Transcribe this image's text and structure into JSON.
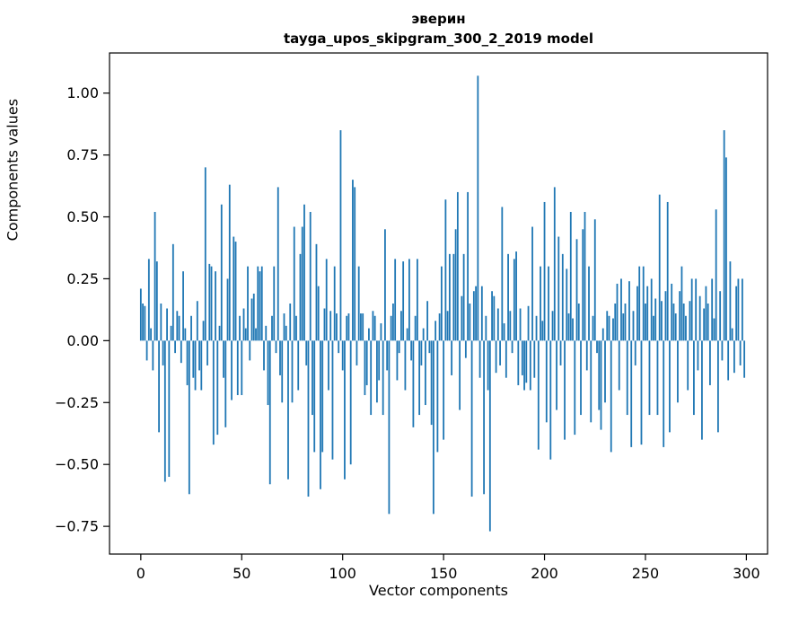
{
  "figure": {
    "title_line1": "эверин",
    "title_line2": "tayga_upos_skipgram_300_2_2019 model",
    "xlabel": "Vector components",
    "ylabel": "Components values"
  },
  "chart_data": {
    "type": "bar",
    "title": "эверин — tayga_upos_skipgram_300_2_2019 model",
    "xlabel": "Vector components",
    "ylabel": "Components values",
    "legend": "none",
    "grid": false,
    "bar_color": "#1f77b4",
    "frame_color": "#000000",
    "xlim": [
      -15.5,
      310.5
    ],
    "ylim": [
      -0.862,
      1.162
    ],
    "x_ticks": [
      0,
      50,
      100,
      150,
      200,
      250,
      300
    ],
    "x_tick_labels": [
      "0",
      "50",
      "100",
      "150",
      "200",
      "250",
      "300"
    ],
    "y_ticks": [
      -0.75,
      -0.5,
      -0.25,
      0,
      0.25,
      0.5,
      0.75,
      1.0
    ],
    "y_tick_labels": [
      "−0.75",
      "−0.50",
      "−0.25",
      "0.00",
      "0.25",
      "0.50",
      "0.75",
      "1.00"
    ],
    "x_start": 0,
    "bar_width_units": 0.8,
    "values": [
      0.21,
      0.15,
      0.14,
      -0.08,
      0.33,
      0.05,
      -0.12,
      0.52,
      0.32,
      -0.37,
      0.15,
      -0.1,
      -0.57,
      0.13,
      -0.55,
      0.06,
      0.39,
      -0.05,
      0.12,
      0.1,
      -0.09,
      0.28,
      0.05,
      -0.18,
      -0.62,
      0.1,
      -0.15,
      -0.2,
      0.16,
      -0.12,
      -0.2,
      0.08,
      0.7,
      -0.1,
      0.31,
      0.3,
      -0.42,
      0.28,
      -0.38,
      0.06,
      0.55,
      -0.15,
      -0.35,
      0.25,
      0.63,
      -0.24,
      0.42,
      0.4,
      -0.22,
      0.1,
      -0.22,
      0.13,
      0.05,
      0.3,
      -0.08,
      0.17,
      0.19,
      0.05,
      0.3,
      0.28,
      0.3,
      -0.12,
      0.06,
      -0.26,
      -0.58,
      0.1,
      0.3,
      -0.05,
      0.62,
      -0.14,
      -0.25,
      0.11,
      0.06,
      -0.56,
      0.15,
      -0.25,
      0.46,
      0.1,
      -0.2,
      0.35,
      0.46,
      0.55,
      -0.1,
      -0.63,
      0.52,
      -0.3,
      -0.45,
      0.39,
      0.22,
      -0.6,
      -0.45,
      0.13,
      0.33,
      -0.2,
      0.12,
      -0.48,
      0.3,
      0.11,
      -0.05,
      0.85,
      -0.12,
      -0.56,
      0.1,
      0.11,
      -0.5,
      0.65,
      0.62,
      -0.1,
      0.3,
      0.11,
      0.11,
      -0.22,
      -0.18,
      0.05,
      -0.3,
      0.12,
      0.1,
      -0.25,
      -0.16,
      0.07,
      -0.3,
      0.45,
      -0.12,
      -0.7,
      0.1,
      0.15,
      0.33,
      -0.16,
      -0.05,
      0.12,
      0.32,
      -0.2,
      0.05,
      0.33,
      -0.08,
      -0.35,
      0.1,
      0.33,
      -0.3,
      -0.1,
      0.05,
      -0.26,
      0.16,
      -0.05,
      -0.34,
      -0.7,
      0.08,
      -0.45,
      0.11,
      0.3,
      -0.4,
      0.57,
      0.12,
      0.35,
      -0.14,
      0.35,
      0.45,
      0.6,
      -0.28,
      0.18,
      0.35,
      -0.07,
      0.6,
      0.15,
      -0.63,
      0.2,
      0.22,
      1.07,
      -0.15,
      0.22,
      -0.62,
      0.1,
      -0.2,
      -0.77,
      0.2,
      0.18,
      -0.13,
      0.13,
      -0.1,
      0.54,
      0.07,
      -0.15,
      0.35,
      0.12,
      -0.05,
      0.33,
      0.36,
      -0.18,
      0.13,
      -0.14,
      -0.2,
      -0.17,
      0.14,
      -0.2,
      0.46,
      -0.15,
      0.1,
      -0.44,
      0.3,
      0.08,
      0.56,
      -0.33,
      0.3,
      -0.48,
      0.12,
      0.62,
      -0.28,
      0.42,
      -0.1,
      0.35,
      -0.4,
      0.29,
      0.11,
      0.52,
      0.09,
      -0.38,
      0.41,
      0.15,
      -0.3,
      0.45,
      0.52,
      -0.12,
      0.3,
      -0.33,
      0.1,
      0.49,
      -0.05,
      -0.28,
      -0.36,
      0.05,
      -0.25,
      0.12,
      0.1,
      -0.45,
      0.09,
      0.15,
      0.23,
      -0.2,
      0.25,
      0.11,
      0.15,
      -0.3,
      0.24,
      -0.43,
      0.12,
      -0.1,
      0.22,
      0.3,
      -0.42,
      0.3,
      0.15,
      0.22,
      -0.3,
      0.25,
      0.1,
      0.17,
      -0.3,
      0.59,
      0.16,
      -0.43,
      0.2,
      0.56,
      -0.37,
      0.23,
      0.15,
      0.11,
      -0.25,
      0.2,
      0.3,
      0.15,
      0.1,
      -0.2,
      0.16,
      0.25,
      -0.3,
      0.25,
      -0.12,
      0.18,
      -0.4,
      0.13,
      0.22,
      0.15,
      -0.18,
      0.25,
      0.09,
      0.53,
      -0.37,
      0.2,
      -0.08,
      0.85,
      0.74,
      -0.16,
      0.32,
      0.05,
      -0.13,
      0.22,
      0.25,
      -0.1,
      0.25,
      -0.15
    ]
  }
}
